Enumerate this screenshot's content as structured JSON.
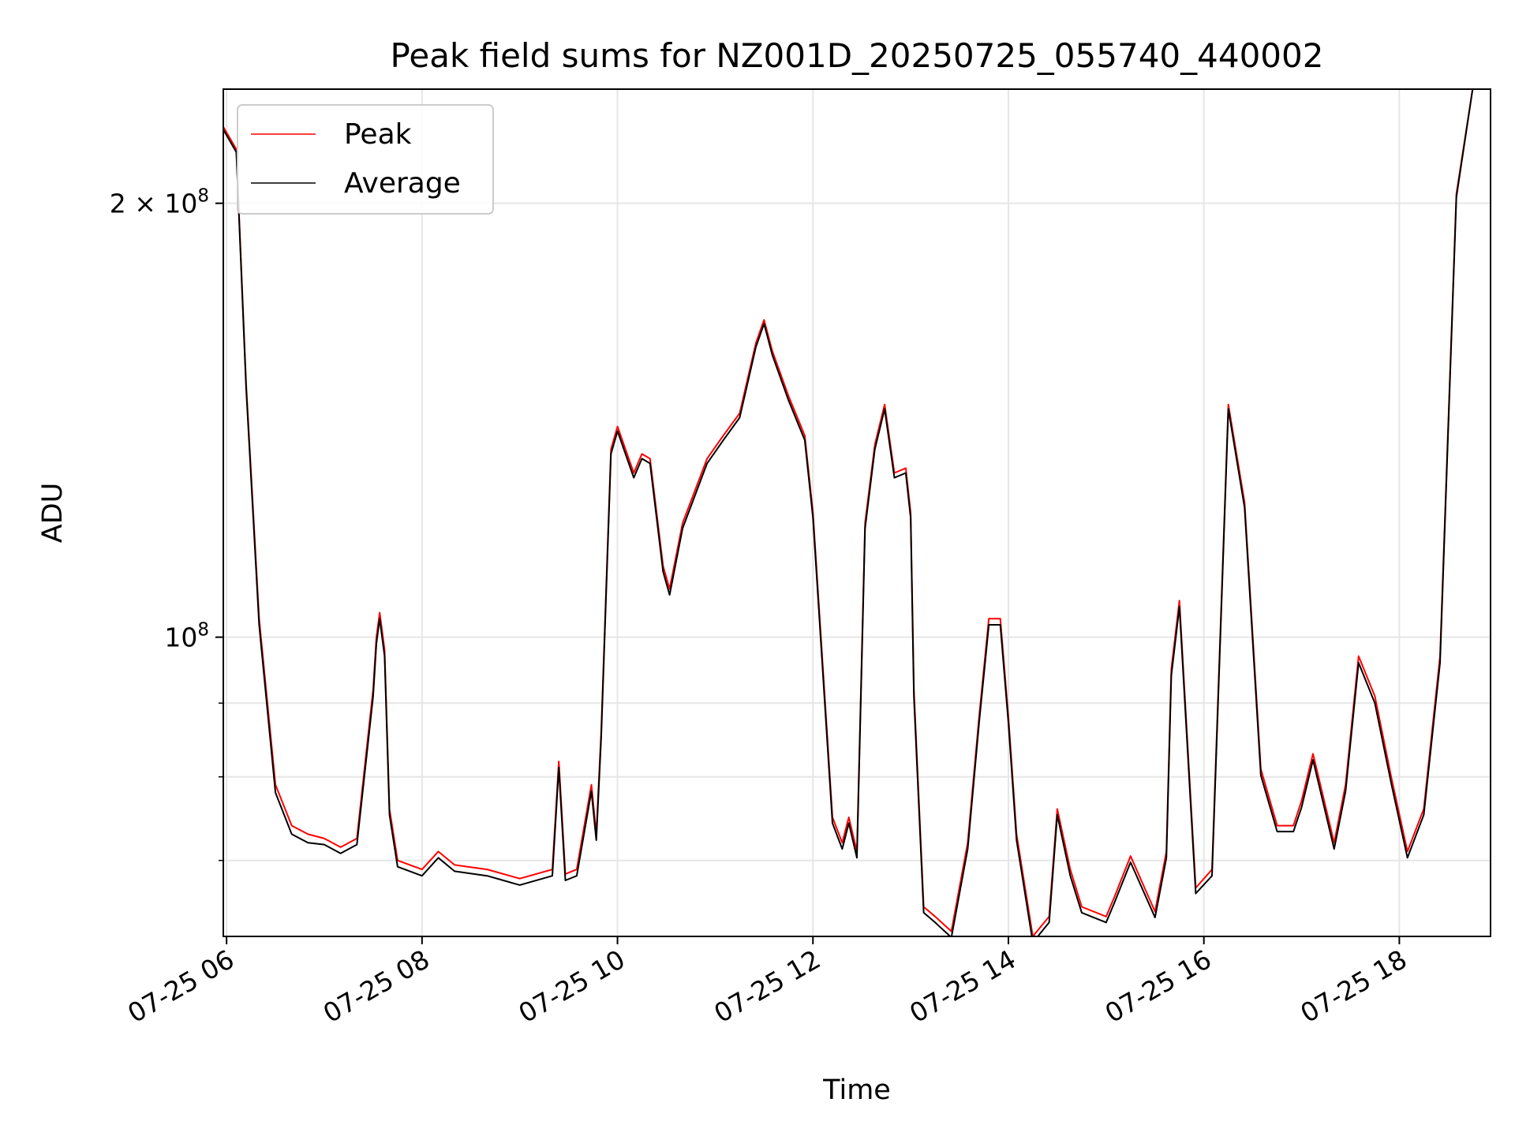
{
  "chart_data": {
    "type": "line",
    "title": "Peak field sums for NZ001D_20250725_055740_440002",
    "xlabel": "Time",
    "ylabel": "ADU",
    "y_scale": "log",
    "xlim": [
      "2025-07-25T05:58",
      "2025-07-25T18:56"
    ],
    "ylim": [
      62000000,
      240000000
    ],
    "grid": true,
    "legend_position": "top-left",
    "x_ticks": [
      {
        "t": "2025-07-25T06:00",
        "label": "07-25 06"
      },
      {
        "t": "2025-07-25T08:00",
        "label": "07-25 08"
      },
      {
        "t": "2025-07-25T10:00",
        "label": "07-25 10"
      },
      {
        "t": "2025-07-25T12:00",
        "label": "07-25 12"
      },
      {
        "t": "2025-07-25T14:00",
        "label": "07-25 14"
      },
      {
        "t": "2025-07-25T16:00",
        "label": "07-25 16"
      },
      {
        "t": "2025-07-25T18:00",
        "label": "07-25 18"
      }
    ],
    "y_major_ticks": [
      {
        "value": 100000000,
        "base": "10",
        "exp": "8",
        "mult": ""
      },
      {
        "value": 200000000,
        "base": "10",
        "exp": "8",
        "mult": "2 × "
      }
    ],
    "y_minor_ticks": [
      70000000,
      80000000,
      90000000
    ],
    "series": [
      {
        "name": "Peak",
        "color": "#ff0000",
        "x": [
          "2025-07-25T05:58",
          "2025-07-25T06:06",
          "2025-07-25T06:12",
          "2025-07-25T06:20",
          "2025-07-25T06:30",
          "2025-07-25T06:40",
          "2025-07-25T06:50",
          "2025-07-25T07:00",
          "2025-07-25T07:10",
          "2025-07-25T07:20",
          "2025-07-25T07:30",
          "2025-07-25T07:32",
          "2025-07-25T07:34",
          "2025-07-25T07:37",
          "2025-07-25T07:40",
          "2025-07-25T07:45",
          "2025-07-25T08:00",
          "2025-07-25T08:10",
          "2025-07-25T08:20",
          "2025-07-25T08:40",
          "2025-07-25T09:00",
          "2025-07-25T09:20",
          "2025-07-25T09:24",
          "2025-07-25T09:28",
          "2025-07-25T09:35",
          "2025-07-25T09:44",
          "2025-07-25T09:47",
          "2025-07-25T09:50",
          "2025-07-25T09:56",
          "2025-07-25T10:00",
          "2025-07-25T10:10",
          "2025-07-25T10:15",
          "2025-07-25T10:20",
          "2025-07-25T10:28",
          "2025-07-25T10:32",
          "2025-07-25T10:40",
          "2025-07-25T10:55",
          "2025-07-25T11:05",
          "2025-07-25T11:15",
          "2025-07-25T11:25",
          "2025-07-25T11:30",
          "2025-07-25T11:35",
          "2025-07-25T11:45",
          "2025-07-25T11:55",
          "2025-07-25T12:00",
          "2025-07-25T12:12",
          "2025-07-25T12:18",
          "2025-07-25T12:22",
          "2025-07-25T12:27",
          "2025-07-25T12:32",
          "2025-07-25T12:38",
          "2025-07-25T12:44",
          "2025-07-25T12:50",
          "2025-07-25T12:57",
          "2025-07-25T13:00",
          "2025-07-25T13:02",
          "2025-07-25T13:08",
          "2025-07-25T13:15",
          "2025-07-25T13:25",
          "2025-07-25T13:35",
          "2025-07-25T13:42",
          "2025-07-25T13:48",
          "2025-07-25T13:55",
          "2025-07-25T14:00",
          "2025-07-25T14:05",
          "2025-07-25T14:15",
          "2025-07-25T14:25",
          "2025-07-25T14:30",
          "2025-07-25T14:38",
          "2025-07-25T14:45",
          "2025-07-25T15:00",
          "2025-07-25T15:05",
          "2025-07-25T15:15",
          "2025-07-25T15:30",
          "2025-07-25T15:37",
          "2025-07-25T15:40",
          "2025-07-25T15:45",
          "2025-07-25T15:55",
          "2025-07-25T16:05",
          "2025-07-25T16:15",
          "2025-07-25T16:25",
          "2025-07-25T16:35",
          "2025-07-25T16:45",
          "2025-07-25T16:55",
          "2025-07-25T17:00",
          "2025-07-25T17:07",
          "2025-07-25T17:20",
          "2025-07-25T17:27",
          "2025-07-25T17:35",
          "2025-07-25T17:45",
          "2025-07-25T17:55",
          "2025-07-25T18:05",
          "2025-07-25T18:15",
          "2025-07-25T18:25",
          "2025-07-25T18:35",
          "2025-07-25T18:45",
          "2025-07-25T18:56"
        ],
        "y": [
          226000000,
          218000000,
          150000000,
          103000000,
          79000000,
          74000000,
          73000000,
          72500000,
          71500000,
          72500000,
          92000000,
          100000000,
          104000000,
          98000000,
          76000000,
          70000000,
          69000000,
          71000000,
          69500000,
          69000000,
          68000000,
          69000000,
          82000000,
          68500000,
          69000000,
          79000000,
          73000000,
          86000000,
          135000000,
          140000000,
          130000000,
          134000000,
          133000000,
          112000000,
          108000000,
          120000000,
          133000000,
          138000000,
          143000000,
          160000000,
          166000000,
          158000000,
          147000000,
          138000000,
          122000000,
          75000000,
          72000000,
          75000000,
          71000000,
          120000000,
          136000000,
          145000000,
          130000000,
          131000000,
          122000000,
          92000000,
          65000000,
          64000000,
          62500000,
          72000000,
          88000000,
          103000000,
          103000000,
          88000000,
          73000000,
          62000000,
          64000000,
          76000000,
          69000000,
          65000000,
          64000000,
          66000000,
          70500000,
          64500000,
          71000000,
          95000000,
          106000000,
          67000000,
          69000000,
          145000000,
          124000000,
          81000000,
          74000000,
          74000000,
          77000000,
          83000000,
          72000000,
          79000000,
          97000000,
          91000000,
          80000000,
          71000000,
          76000000,
          97000000,
          203000000,
          240000000,
          240000000
        ]
      },
      {
        "name": "Average",
        "color": "#000000",
        "x": [
          "2025-07-25T05:58",
          "2025-07-25T06:06",
          "2025-07-25T06:12",
          "2025-07-25T06:20",
          "2025-07-25T06:30",
          "2025-07-25T06:40",
          "2025-07-25T06:50",
          "2025-07-25T07:00",
          "2025-07-25T07:10",
          "2025-07-25T07:20",
          "2025-07-25T07:30",
          "2025-07-25T07:32",
          "2025-07-25T07:34",
          "2025-07-25T07:37",
          "2025-07-25T07:40",
          "2025-07-25T07:45",
          "2025-07-25T08:00",
          "2025-07-25T08:10",
          "2025-07-25T08:20",
          "2025-07-25T08:40",
          "2025-07-25T09:00",
          "2025-07-25T09:20",
          "2025-07-25T09:24",
          "2025-07-25T09:28",
          "2025-07-25T09:35",
          "2025-07-25T09:44",
          "2025-07-25T09:47",
          "2025-07-25T09:50",
          "2025-07-25T09:56",
          "2025-07-25T10:00",
          "2025-07-25T10:10",
          "2025-07-25T10:15",
          "2025-07-25T10:20",
          "2025-07-25T10:28",
          "2025-07-25T10:32",
          "2025-07-25T10:40",
          "2025-07-25T10:55",
          "2025-07-25T11:05",
          "2025-07-25T11:15",
          "2025-07-25T11:25",
          "2025-07-25T11:30",
          "2025-07-25T11:35",
          "2025-07-25T11:45",
          "2025-07-25T11:55",
          "2025-07-25T12:00",
          "2025-07-25T12:12",
          "2025-07-25T12:18",
          "2025-07-25T12:22",
          "2025-07-25T12:27",
          "2025-07-25T12:32",
          "2025-07-25T12:38",
          "2025-07-25T12:44",
          "2025-07-25T12:50",
          "2025-07-25T12:57",
          "2025-07-25T13:00",
          "2025-07-25T13:02",
          "2025-07-25T13:08",
          "2025-07-25T13:15",
          "2025-07-25T13:25",
          "2025-07-25T13:35",
          "2025-07-25T13:42",
          "2025-07-25T13:48",
          "2025-07-25T13:55",
          "2025-07-25T14:00",
          "2025-07-25T14:05",
          "2025-07-25T14:15",
          "2025-07-25T14:25",
          "2025-07-25T14:30",
          "2025-07-25T14:38",
          "2025-07-25T14:45",
          "2025-07-25T15:00",
          "2025-07-25T15:05",
          "2025-07-25T15:15",
          "2025-07-25T15:30",
          "2025-07-25T15:37",
          "2025-07-25T15:40",
          "2025-07-25T15:45",
          "2025-07-25T15:55",
          "2025-07-25T16:05",
          "2025-07-25T16:15",
          "2025-07-25T16:25",
          "2025-07-25T16:35",
          "2025-07-25T16:45",
          "2025-07-25T16:55",
          "2025-07-25T17:00",
          "2025-07-25T17:07",
          "2025-07-25T17:20",
          "2025-07-25T17:27",
          "2025-07-25T17:35",
          "2025-07-25T17:45",
          "2025-07-25T17:55",
          "2025-07-25T18:05",
          "2025-07-25T18:15",
          "2025-07-25T18:25",
          "2025-07-25T18:35",
          "2025-07-25T18:45",
          "2025-07-25T18:56"
        ],
        "y": [
          225000000,
          217000000,
          149000000,
          102000000,
          78000000,
          73000000,
          72000000,
          71800000,
          70800000,
          71800000,
          91000000,
          99000000,
          103000000,
          97000000,
          75300000,
          69300000,
          68300000,
          70300000,
          68800000,
          68300000,
          67300000,
          68300000,
          81200000,
          67800000,
          68300000,
          78200000,
          72300000,
          85200000,
          134000000,
          139000000,
          129000000,
          133000000,
          132000000,
          111000000,
          107000000,
          119000000,
          132000000,
          137000000,
          142000000,
          159000000,
          165000000,
          157000000,
          146000000,
          137000000,
          121000000,
          74300000,
          71300000,
          74300000,
          70300000,
          119000000,
          135000000,
          144000000,
          129000000,
          130000000,
          121000000,
          91000000,
          64400000,
          63400000,
          61900000,
          71300000,
          87200000,
          102000000,
          102000000,
          87200000,
          72300000,
          61400000,
          63400000,
          75300000,
          68300000,
          64400000,
          63400000,
          65400000,
          69800000,
          63900000,
          70300000,
          94000000,
          105000000,
          66400000,
          68300000,
          144000000,
          123000000,
          80200000,
          73300000,
          73300000,
          76200000,
          82200000,
          71300000,
          78200000,
          96000000,
          90000000,
          79200000,
          70300000,
          75300000,
          96000000,
          202000000,
          240000000,
          240000000
        ]
      }
    ]
  }
}
